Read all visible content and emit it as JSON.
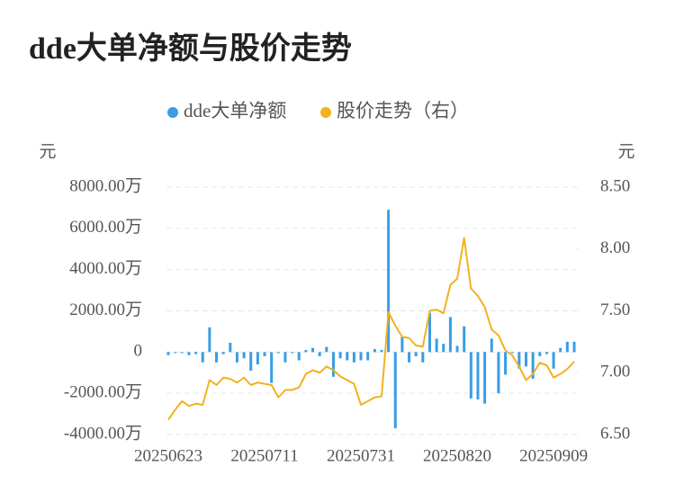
{
  "chart_data": {
    "type": "bar",
    "title": "dde大单净额与股价走势",
    "y_label": "元",
    "y2_label": "元",
    "categories": [
      "20250623",
      null,
      null,
      null,
      null,
      null,
      null,
      null,
      null,
      null,
      null,
      null,
      null,
      null,
      "20250711",
      null,
      null,
      null,
      null,
      null,
      null,
      null,
      null,
      null,
      null,
      null,
      null,
      null,
      "20250731",
      null,
      null,
      null,
      null,
      null,
      null,
      null,
      null,
      null,
      null,
      null,
      null,
      null,
      "20250820",
      null,
      null,
      null,
      null,
      null,
      null,
      null,
      null,
      null,
      null,
      null,
      null,
      null,
      "20250909",
      null,
      null,
      null
    ],
    "series": [
      {
        "name": "dde大单净额",
        "type": "bar",
        "color": "#3a9de6",
        "values": [
          -150,
          -50,
          -50,
          -150,
          -100,
          -500,
          1200,
          -500,
          -100,
          450,
          -500,
          -300,
          -900,
          -600,
          -200,
          -1500,
          -50,
          -500,
          -50,
          -400,
          100,
          200,
          -200,
          250,
          -1200,
          -300,
          -400,
          -500,
          -400,
          -400,
          150,
          100,
          6900,
          -3700,
          750,
          -500,
          -200,
          -500,
          1900,
          650,
          400,
          1700,
          300,
          1250,
          -2250,
          -2300,
          -2500,
          650,
          -2000,
          -1100,
          -50,
          -800,
          -700,
          -1300,
          -200,
          -100,
          -800,
          200,
          500,
          500
        ]
      },
      {
        "name": "股价走势（右）",
        "type": "line",
        "axis": "y2",
        "color": "#f2b21e",
        "values": [
          6.62,
          6.7,
          6.77,
          6.73,
          6.75,
          6.74,
          6.94,
          6.9,
          6.96,
          6.95,
          6.92,
          6.96,
          6.9,
          6.92,
          6.91,
          6.9,
          6.8,
          6.86,
          6.86,
          6.88,
          6.99,
          7.02,
          7.0,
          7.05,
          7.02,
          6.97,
          6.94,
          6.91,
          6.74,
          6.77,
          6.8,
          6.81,
          7.49,
          7.38,
          7.29,
          7.28,
          7.22,
          7.21,
          7.5,
          7.51,
          7.48,
          7.71,
          7.76,
          8.09,
          7.68,
          7.62,
          7.53,
          7.35,
          7.3,
          7.18,
          7.14,
          7.05,
          6.94,
          6.99,
          7.08,
          7.06,
          6.96,
          6.99,
          7.03,
          7.09
        ]
      }
    ],
    "ylim": [
      -4000,
      8000
    ],
    "yticks": [
      {
        "value": -4000,
        "label": "-4000.00万"
      },
      {
        "value": -2000,
        "label": "-2000.00万"
      },
      0,
      {
        "value": 2000,
        "label": "2000.00万"
      },
      {
        "value": 4000,
        "label": "4000.00万"
      },
      {
        "value": 6000,
        "label": "6000.00万"
      },
      {
        "value": 8000,
        "label": "8000.00万"
      }
    ],
    "y2lim": [
      6.5,
      8.5
    ],
    "y2ticks": [
      {
        "value": 6.5,
        "label": "6.50"
      },
      {
        "value": 7,
        "label": "7.00"
      },
      {
        "value": 7.5,
        "label": "7.50"
      },
      {
        "value": 8,
        "label": "8.00"
      },
      {
        "value": 8.5,
        "label": "8.50"
      }
    ],
    "grid": true,
    "legend": "top"
  }
}
